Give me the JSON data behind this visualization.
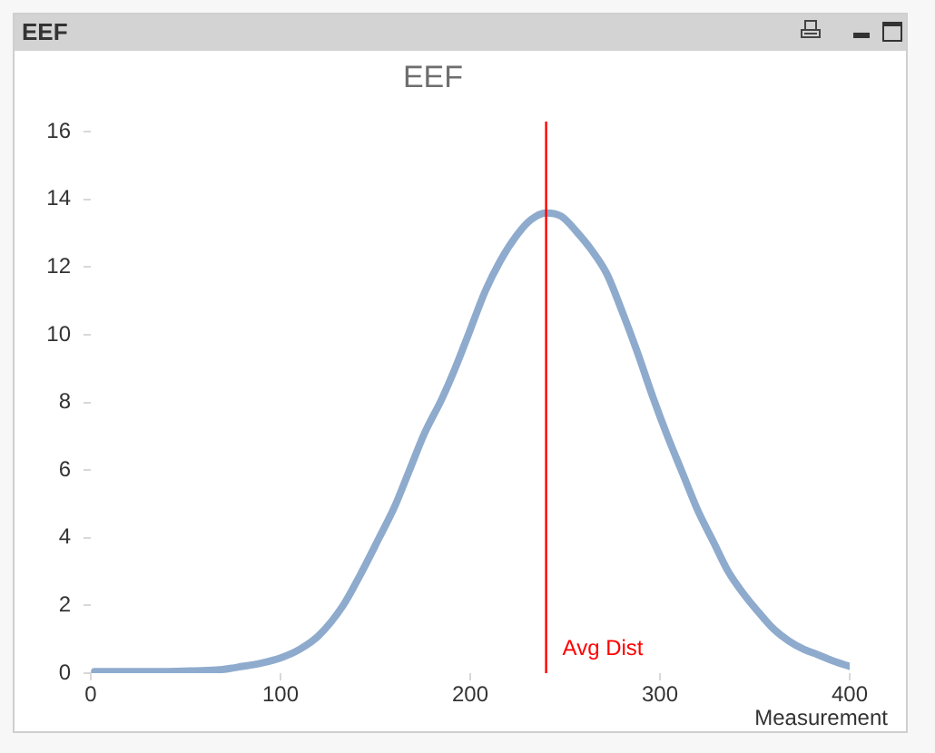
{
  "chart_data": {
    "type": "line",
    "title": "EEF",
    "xlabel": "Measurement",
    "annotations": [
      "EEF"
    ],
    "x": [
      2,
      20,
      40,
      55,
      68,
      80,
      90,
      100,
      110,
      120,
      133,
      142,
      152,
      160,
      168,
      176,
      185,
      192,
      199,
      208,
      216,
      224,
      232,
      240,
      248,
      256,
      264,
      272,
      280,
      288,
      296,
      304,
      312,
      320,
      328,
      336,
      344,
      352,
      360,
      368,
      376,
      383,
      392,
      400
    ],
    "series": [
      {
        "color": "#8eabcd",
        "values": [
          0.05,
          0.05,
          0.05,
          0.07,
          0.1,
          0.2,
          0.3,
          0.45,
          0.7,
          1.1,
          2.0,
          2.9,
          4.0,
          4.9,
          6.0,
          7.1,
          8.1,
          9.0,
          10.0,
          11.3,
          12.2,
          12.9,
          13.4,
          13.6,
          13.5,
          13.05,
          12.5,
          11.8,
          10.7,
          9.5,
          8.2,
          7.0,
          5.9,
          4.8,
          3.9,
          3.0,
          2.35,
          1.8,
          1.3,
          0.95,
          0.7,
          0.55,
          0.35,
          0.2
        ]
      }
    ],
    "xlim": [
      0,
      400
    ],
    "xticks": [
      0,
      100,
      200,
      300,
      400
    ],
    "ylim": [
      0,
      16.3
    ],
    "yticks": [
      0,
      2,
      4,
      6,
      8,
      10,
      12,
      14,
      16
    ],
    "ref_lines": [
      {
        "axis": "x",
        "value": 240,
        "label": "Avg Dist",
        "color": "#ff0000"
      }
    ],
    "grid": false,
    "legend": false,
    "marker": "none",
    "line_style": "solid"
  }
}
